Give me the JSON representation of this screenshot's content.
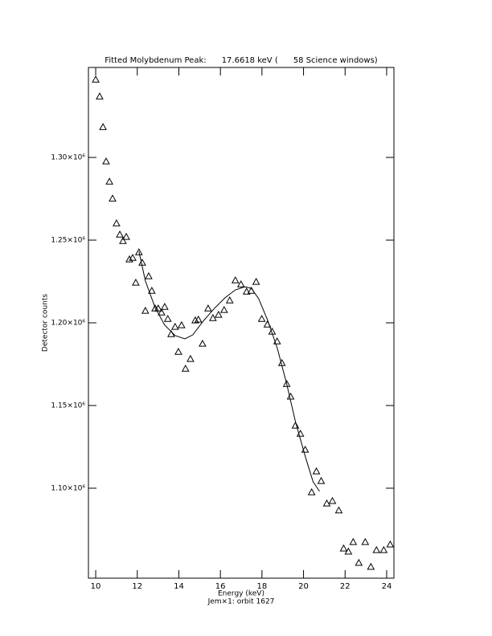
{
  "chart_data": {
    "type": "scatter",
    "title": "Fitted Molybdenum Peak:      17.6618 keV (      58 Science windows)",
    "x_label": "Energy (keV)",
    "subtitle": "Jem×1: orbit 1627",
    "y_label": "Detector counts",
    "xlim": [
      9.65,
      24.35
    ],
    "ylim": [
      1045600,
      1354400
    ],
    "xticks": [
      10,
      12,
      14,
      16,
      18,
      20,
      22,
      24
    ],
    "yticks": [
      {
        "value": 1100000,
        "label": "1.10×10⁶"
      },
      {
        "value": 1150000,
        "label": "1.15×10⁶"
      },
      {
        "value": 1200000,
        "label": "1.20×10⁶"
      },
      {
        "value": 1250000,
        "label": "1.25×10⁶"
      },
      {
        "value": 1300000,
        "label": "1.30×10⁶"
      }
    ],
    "series": [
      {
        "type": "scatter",
        "marker": "triangle",
        "color": "#000000",
        "x": [
          10.0,
          10.19,
          10.35,
          10.5,
          10.66,
          10.81,
          11.0,
          11.16,
          11.31,
          11.47,
          11.62,
          11.78,
          11.93,
          12.08,
          12.24,
          12.39,
          12.55,
          12.7,
          12.86,
          13.01,
          13.17,
          13.32,
          13.47,
          13.63,
          13.82,
          13.98,
          14.13,
          14.32,
          14.56,
          14.79,
          14.94,
          15.14,
          15.41,
          15.64,
          15.91,
          16.18,
          16.45,
          16.72,
          16.99,
          17.26,
          17.49,
          17.72,
          17.99,
          18.26,
          18.49,
          18.73,
          18.96,
          19.19,
          19.38,
          19.61,
          19.85,
          20.08,
          20.39,
          20.62,
          20.85,
          21.12,
          21.39,
          21.7,
          21.93,
          22.16,
          22.39,
          22.66,
          22.97,
          23.24,
          23.51,
          23.86,
          24.17
        ],
        "values": [
          1347100,
          1336900,
          1318400,
          1297600,
          1285400,
          1275200,
          1260200,
          1253400,
          1249500,
          1252000,
          1238400,
          1239300,
          1224300,
          1242700,
          1236400,
          1207300,
          1228200,
          1219400,
          1208700,
          1208700,
          1206300,
          1209700,
          1202400,
          1193200,
          1197600,
          1182500,
          1198600,
          1172300,
          1178200,
          1201500,
          1202000,
          1187400,
          1208700,
          1202900,
          1204900,
          1207800,
          1213600,
          1225700,
          1223300,
          1218900,
          1219400,
          1224800,
          1202400,
          1199000,
          1194700,
          1188800,
          1175700,
          1163100,
          1155400,
          1137900,
          1133000,
          1123300,
          1097600,
          1110200,
          1104400,
          1090800,
          1092300,
          1086600,
          1063600,
          1061700,
          1067500,
          1054900,
          1067500,
          1052500,
          1062600,
          1062600,
          1066000
        ]
      },
      {
        "type": "line",
        "color": "#000000",
        "x": [
          12.08,
          12.39,
          12.86,
          13.32,
          13.82,
          14.29,
          14.67,
          15.17,
          15.68,
          16.22,
          16.72,
          17.18,
          17.49,
          17.84,
          18.26,
          18.73,
          19.19,
          19.61,
          20.08,
          20.46,
          20.77
        ],
        "values": [
          1243200,
          1225300,
          1209200,
          1198600,
          1192300,
          1190300,
          1192700,
          1201000,
          1208300,
          1215100,
          1219900,
          1221800,
          1220900,
          1214600,
          1202000,
          1185000,
          1163100,
          1140300,
          1119400,
          1103900,
          1098100
        ]
      }
    ]
  }
}
